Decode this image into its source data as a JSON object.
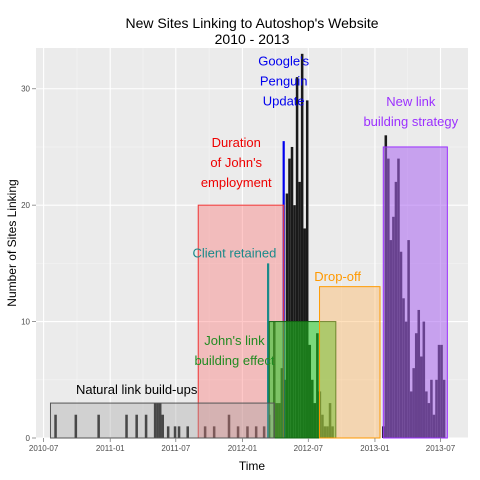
{
  "chart_data": {
    "type": "bar",
    "title": "New Sites Linking to Autoshop's Website",
    "subtitle": "2010 - 2013",
    "xlabel": "Time",
    "ylabel": "Number of Sites Linking",
    "ylim": [
      0,
      33.5
    ],
    "xlim": [
      "2010-06-10",
      "2013-09-15"
    ],
    "x_ticks": [
      "2010-07",
      "2011-01",
      "2011-07",
      "2012-01",
      "2012-07",
      "2013-01",
      "2013-07"
    ],
    "y_ticks": [
      0,
      10,
      20,
      30
    ],
    "grid": true,
    "series": [
      {
        "color": "#1a1a1a",
        "points": [
          [
            "2010-08-03",
            2
          ],
          [
            "2010-09-28",
            2
          ],
          [
            "2010-11-30",
            2
          ],
          [
            "2011-02-15",
            2
          ],
          [
            "2011-03-15",
            2
          ],
          [
            "2011-04-10",
            2
          ],
          [
            "2011-05-05",
            3
          ],
          [
            "2011-05-12",
            3
          ],
          [
            "2011-05-19",
            3
          ],
          [
            "2011-05-26",
            2
          ],
          [
            "2011-06-10",
            1
          ],
          [
            "2011-06-29",
            1
          ],
          [
            "2011-07-10",
            1
          ],
          [
            "2011-08-03",
            1
          ],
          [
            "2011-09-20",
            1
          ],
          [
            "2011-10-15",
            1
          ],
          [
            "2011-11-25",
            2
          ],
          [
            "2011-12-20",
            1
          ],
          [
            "2012-01-15",
            1
          ],
          [
            "2012-02-08",
            1
          ],
          [
            "2012-03-01",
            1
          ],
          [
            "2012-03-15",
            2
          ],
          [
            "2012-03-29",
            10
          ],
          [
            "2012-04-05",
            3
          ],
          [
            "2012-04-12",
            3
          ],
          [
            "2012-04-19",
            6
          ],
          [
            "2012-04-26",
            5
          ],
          [
            "2012-05-03",
            21
          ],
          [
            "2012-05-10",
            24
          ],
          [
            "2012-05-17",
            25
          ],
          [
            "2012-05-24",
            20
          ],
          [
            "2012-05-31",
            31
          ],
          [
            "2012-06-07",
            22
          ],
          [
            "2012-06-14",
            33
          ],
          [
            "2012-06-21",
            18
          ],
          [
            "2012-06-28",
            29
          ],
          [
            "2012-07-05",
            8
          ],
          [
            "2012-07-12",
            5
          ],
          [
            "2012-07-19",
            3
          ],
          [
            "2012-07-26",
            9
          ],
          [
            "2012-08-02",
            4
          ],
          [
            "2012-08-09",
            2
          ],
          [
            "2012-08-16",
            1
          ],
          [
            "2012-08-23",
            1
          ],
          [
            "2012-08-30",
            3
          ],
          [
            "2012-09-06",
            1
          ],
          [
            "2013-01-24",
            1
          ],
          [
            "2013-01-31",
            26
          ],
          [
            "2013-02-07",
            24
          ],
          [
            "2013-02-14",
            17
          ],
          [
            "2013-02-21",
            19
          ],
          [
            "2013-02-28",
            22
          ],
          [
            "2013-03-07",
            24
          ],
          [
            "2013-03-14",
            16
          ],
          [
            "2013-03-21",
            12
          ],
          [
            "2013-03-28",
            10
          ],
          [
            "2013-04-04",
            17
          ],
          [
            "2013-04-11",
            4
          ],
          [
            "2013-04-18",
            6
          ],
          [
            "2013-04-25",
            9
          ],
          [
            "2013-05-02",
            11
          ],
          [
            "2013-05-09",
            7
          ],
          [
            "2013-05-16",
            10
          ],
          [
            "2013-05-23",
            4
          ],
          [
            "2013-05-30",
            3
          ],
          [
            "2013-06-06",
            5
          ],
          [
            "2013-06-13",
            2
          ],
          [
            "2013-06-20",
            5
          ],
          [
            "2013-06-27",
            8
          ],
          [
            "2013-07-04",
            8
          ],
          [
            "2013-07-11",
            5
          ]
        ]
      }
    ],
    "annotations": [
      {
        "lines": [
          "Google's",
          "Penguin",
          "Update"
        ],
        "color": "#0000ee",
        "x": "2012-04-24",
        "y": 32,
        "line": {
          "x": "2012-04-24",
          "from": 0,
          "to": 25.5,
          "color": "#0000ee"
        }
      },
      {
        "lines": [
          "Duration",
          "of John's",
          "employment"
        ],
        "color": "#ee0000",
        "x": "2011-12-15",
        "y": 25,
        "rect": {
          "x0": "2011-09-01",
          "x1": "2012-04-24",
          "y0": 0,
          "y1": 20,
          "fill": "rgba(255,100,100,0.35)",
          "stroke": "#ee3333"
        }
      },
      {
        "lines": [
          "Client retained"
        ],
        "color": "#1a8a8a",
        "x": "2011-12-10",
        "y": 15.5,
        "line": {
          "x": "2012-03-12",
          "from": 0,
          "to": 15,
          "color": "#1a8a8a"
        }
      },
      {
        "lines": [
          "John's link",
          "building effect"
        ],
        "color": "#228b22",
        "x": "2011-12-10",
        "y": 8,
        "rect": {
          "x0": "2012-03-15",
          "x1": "2012-09-15",
          "y0": 0,
          "y1": 10,
          "fill": "rgba(30,200,30,0.55)",
          "stroke": "#116611"
        }
      },
      {
        "lines": [
          "Drop-off"
        ],
        "color": "#ff9900",
        "x": "2012-09-20",
        "y": 13.5,
        "rect": {
          "x0": "2012-08-01",
          "x1": "2013-01-15",
          "y0": 0,
          "y1": 13,
          "fill": "rgba(255,180,90,0.4)",
          "stroke": "#ff9900"
        }
      },
      {
        "lines": [
          "New link",
          "building strategy"
        ],
        "color": "#9b30ff",
        "x": "2013-04-10",
        "y": 28.5,
        "rect": {
          "x0": "2013-01-24",
          "x1": "2013-07-20",
          "y0": 0,
          "y1": 25,
          "fill": "rgba(170,100,240,0.55)",
          "stroke": "#9b30ff"
        }
      },
      {
        "lines": [
          "Natural link build-ups"
        ],
        "color": "#000000",
        "x": "2011-03-15",
        "y": 3.8,
        "rect": {
          "x0": "2010-07-20",
          "x1": "2012-03-29",
          "y0": 0,
          "y1": 3,
          "fill": "rgba(160,160,160,0.35)",
          "stroke": "#555555"
        }
      }
    ]
  }
}
